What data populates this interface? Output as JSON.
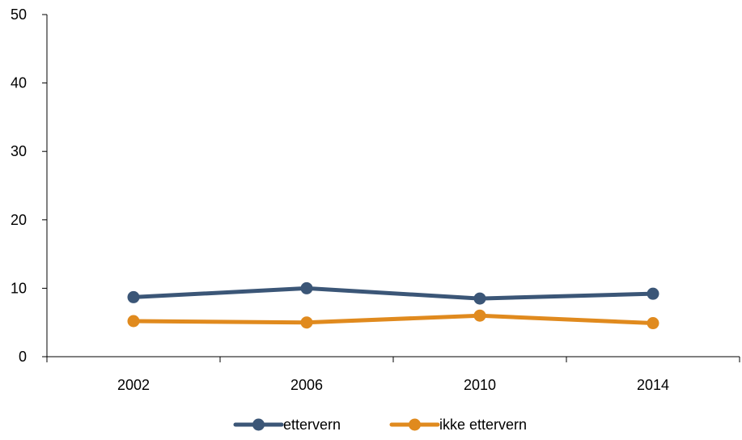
{
  "chart_data": {
    "type": "line",
    "title": "",
    "xlabel": "",
    "ylabel": "",
    "categories": [
      "2002",
      "2006",
      "2010",
      "2014"
    ],
    "ylim": [
      0,
      50
    ],
    "yticks": [
      0,
      10,
      20,
      30,
      40,
      50
    ],
    "grid": false,
    "legend_position": "bottom",
    "series": [
      {
        "name": "ettervern",
        "color": "#3b5677",
        "values": [
          8.7,
          10.0,
          8.5,
          9.2
        ]
      },
      {
        "name": "ikke ettervern",
        "color": "#e08a1e",
        "values": [
          5.2,
          5.0,
          6.0,
          4.9
        ]
      }
    ]
  }
}
